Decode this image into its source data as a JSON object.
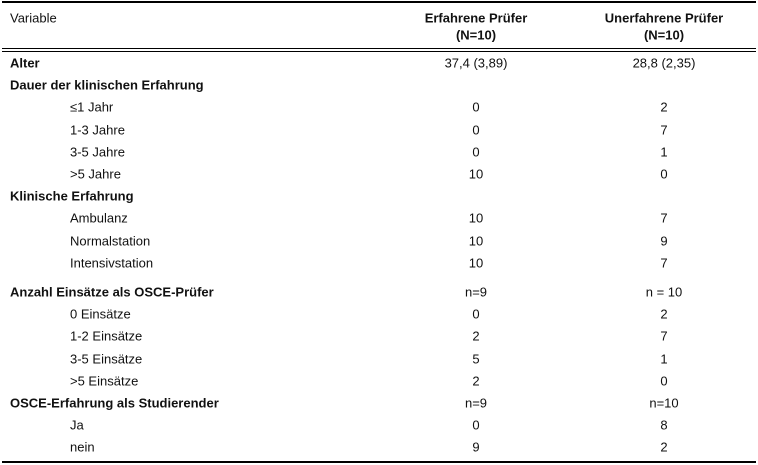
{
  "header": {
    "columns": [
      {
        "title": "Variable"
      },
      {
        "title": "Erfahrene Prüfer",
        "n": "(N=10)"
      },
      {
        "title": "Unerfahrene Prüfer",
        "n": "(N=10)"
      }
    ]
  },
  "sections": [
    {
      "title": "Alter",
      "values": [
        "37,4 (3,89)",
        "28,8 (2,35)"
      ],
      "items": []
    },
    {
      "title": "Dauer der klinischen Erfahrung",
      "items": [
        {
          "label": "≤1 Jahr",
          "values": [
            0,
            2
          ]
        },
        {
          "label": "1-3 Jahre",
          "values": [
            0,
            7
          ]
        },
        {
          "label": "3-5 Jahre",
          "values": [
            0,
            1
          ]
        },
        {
          "label": ">5 Jahre",
          "values": [
            10,
            0
          ]
        }
      ]
    },
    {
      "title": "Klinische Erfahrung",
      "items": [
        {
          "label": "Ambulanz",
          "values": [
            10,
            7
          ]
        },
        {
          "label": "Normalstation",
          "values": [
            10,
            9
          ]
        },
        {
          "label": "Intensivstation",
          "values": [
            10,
            7
          ]
        }
      ]
    },
    {
      "title": "Anzahl Einsätze als OSCE-Prüfer",
      "values": [
        "n=9",
        "n = 10"
      ],
      "items": [
        {
          "label": "0 Einsätze",
          "values": [
            0,
            2
          ]
        },
        {
          "label": "1-2 Einsätze",
          "values": [
            2,
            7
          ]
        },
        {
          "label": "3-5 Einsätze",
          "values": [
            5,
            1
          ]
        },
        {
          "label": ">5 Einsätze",
          "values": [
            2,
            0
          ]
        }
      ]
    },
    {
      "title": "OSCE-Erfahrung als Studierender",
      "values": [
        "n=9",
        "n=10"
      ],
      "items": [
        {
          "label": "Ja",
          "values": [
            0,
            8
          ]
        },
        {
          "label": "nein",
          "values": [
            9,
            2
          ]
        }
      ]
    }
  ]
}
